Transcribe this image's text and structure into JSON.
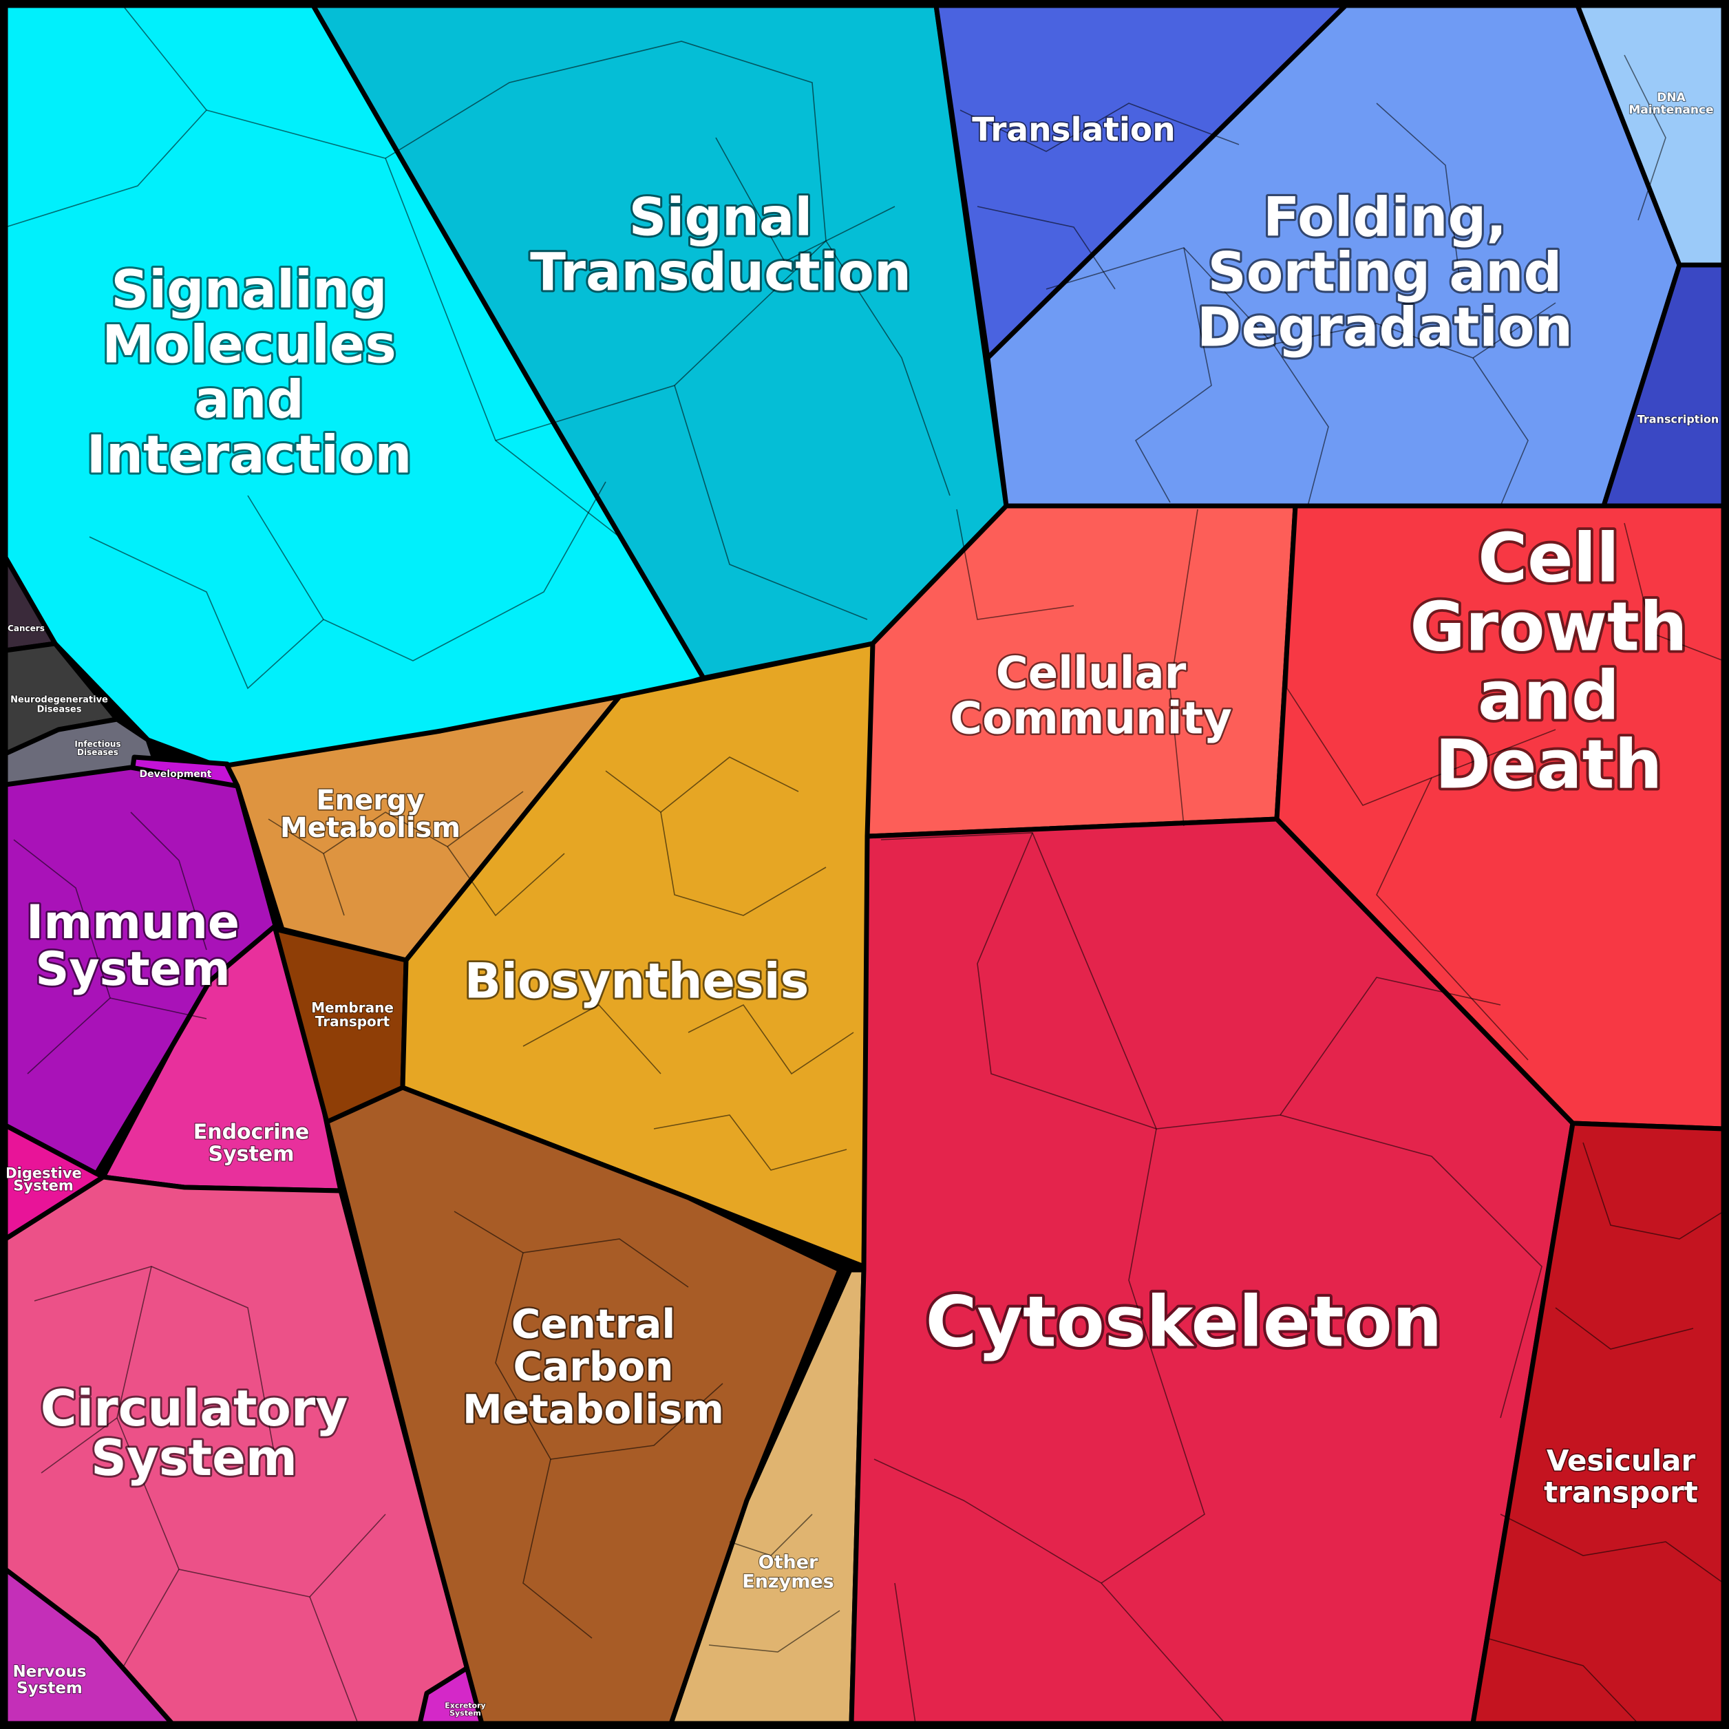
{
  "diagram": {
    "type": "voronoi-treemap",
    "regions": [
      {
        "key": "signaling",
        "label": [
          "Signaling",
          "Molecules",
          "and",
          "Interaction"
        ],
        "color": "#00f0fc"
      },
      {
        "key": "signal_transduction",
        "label": [
          "Signal",
          "Transduction"
        ],
        "color": "#05bed6"
      },
      {
        "key": "translation",
        "label": [
          "Translation"
        ],
        "color": "#4a63e0"
      },
      {
        "key": "folding",
        "label": [
          "Folding,",
          "Sorting and",
          "Degradation"
        ],
        "color": "#6f9bf4"
      },
      {
        "key": "dna_maintenance",
        "label": [
          "DNA",
          "Maintenance"
        ],
        "color": "#9bcaf9"
      },
      {
        "key": "transcription",
        "label": [
          "Transcription"
        ],
        "color": "#3a48c4"
      },
      {
        "key": "cancers",
        "label": [
          "Cancers"
        ],
        "color": "#3a2a3a"
      },
      {
        "key": "neurodegenerative",
        "label": [
          "Neurodegenerative",
          "Diseases"
        ],
        "color": "#3c3c3c"
      },
      {
        "key": "infectious",
        "label": [
          "Infectious",
          "Diseases"
        ],
        "color": "#6b6b7a"
      },
      {
        "key": "development",
        "label": [
          "Development"
        ],
        "color": "#c413d6"
      },
      {
        "key": "immune",
        "label": [
          "Immune",
          "System"
        ],
        "color": "#a912b8"
      },
      {
        "key": "endocrine",
        "label": [
          "Endocrine",
          "System"
        ],
        "color": "#e8309c"
      },
      {
        "key": "digestive",
        "label": [
          "Digestive",
          "System"
        ],
        "color": "#e81498"
      },
      {
        "key": "circulatory",
        "label": [
          "Circulatory",
          "System"
        ],
        "color": "#ec5188"
      },
      {
        "key": "nervous",
        "label": [
          "Nervous",
          "System"
        ],
        "color": "#c42fb8"
      },
      {
        "key": "excretory",
        "label": [
          "Excretory",
          "System"
        ],
        "color": "#d428c8"
      },
      {
        "key": "energy",
        "label": [
          "Energy",
          "Metabolism"
        ],
        "color": "#de9440"
      },
      {
        "key": "membrane",
        "label": [
          "Membrane",
          "Transport"
        ],
        "color": "#8f3e06"
      },
      {
        "key": "biosynthesis",
        "label": [
          "Biosynthesis"
        ],
        "color": "#e6a624"
      },
      {
        "key": "central_carbon",
        "label": [
          "Central",
          "Carbon",
          "Metabolism"
        ],
        "color": "#a85c26"
      },
      {
        "key": "other_enzymes",
        "label": [
          "Other",
          "Enzymes"
        ],
        "color": "#e0b470"
      },
      {
        "key": "cellular_community",
        "label": [
          "Cellular",
          "Community"
        ],
        "color": "#fd5e58"
      },
      {
        "key": "cell_growth",
        "label": [
          "Cell",
          "Growth",
          "and",
          "Death"
        ],
        "color": "#f73844"
      },
      {
        "key": "cytoskeleton",
        "label": [
          "Cytoskeleton"
        ],
        "color": "#e4244c"
      },
      {
        "key": "vesicular",
        "label": [
          "Vesicular",
          "transport"
        ],
        "color": "#c41420"
      }
    ]
  }
}
